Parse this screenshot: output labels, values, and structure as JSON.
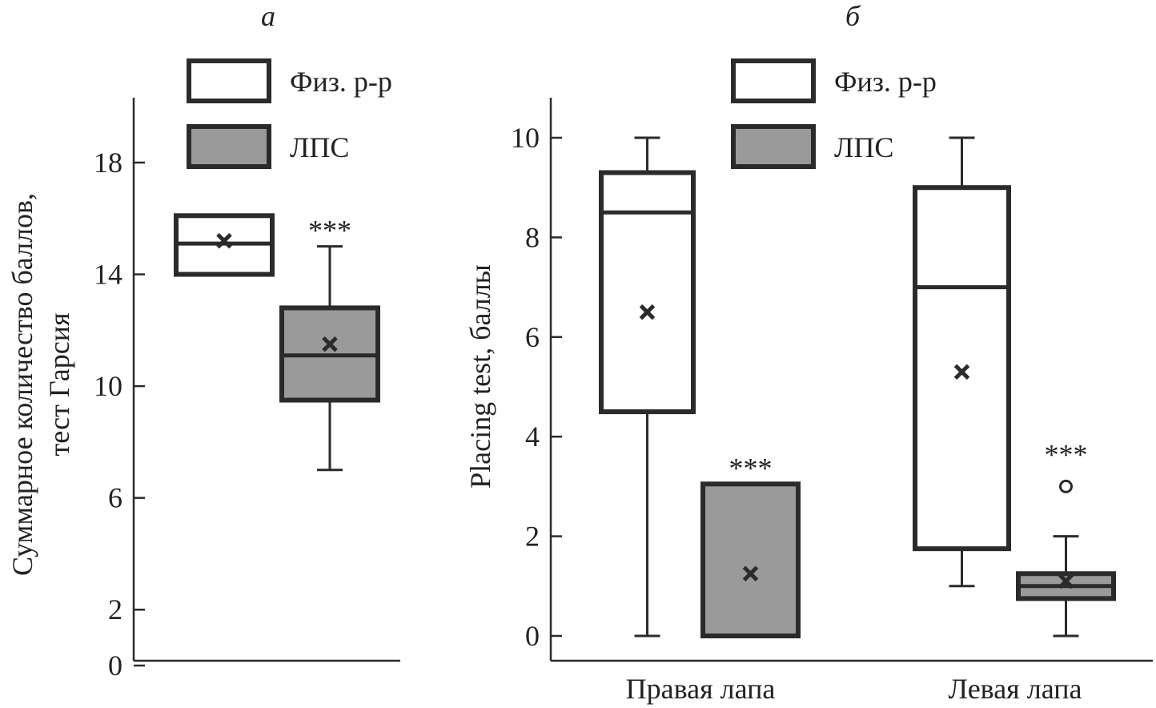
{
  "chart_data": [
    {
      "type": "box",
      "panel_label": "а",
      "ylabel": "Суммарное количество баллов, тест Гарсия",
      "ylabel_lines": [
        "Суммарное количество баллов,",
        "тест Гарсия"
      ],
      "yticks": [
        0,
        2,
        6,
        10,
        14,
        18
      ],
      "ylim": [
        0,
        20
      ],
      "legend": [
        {
          "name": "Физ. р-р",
          "color": "#ffffff"
        },
        {
          "name": "ЛПС",
          "color": "#9a9a9a"
        }
      ],
      "legend_placement": "top",
      "categories": [
        ""
      ],
      "series": [
        {
          "name": "Физ. р-р",
          "boxes": [
            {
              "whisker_low": 14.0,
              "q1": 14.0,
              "median": 15.1,
              "q3": 16.1,
              "whisker_high": 16.1,
              "mean": 15.2,
              "outliers": [],
              "annotation": ""
            }
          ]
        },
        {
          "name": "ЛПС",
          "boxes": [
            {
              "whisker_low": 7.0,
              "q1": 9.5,
              "median": 11.1,
              "q3": 12.8,
              "whisker_high": 15.0,
              "mean": 11.5,
              "outliers": [],
              "annotation": "***"
            }
          ]
        }
      ]
    },
    {
      "type": "box",
      "panel_label": "б",
      "ylabel": "Placing test, баллы",
      "yticks": [
        0,
        2,
        4,
        6,
        8,
        10
      ],
      "ylim": [
        0,
        10.5
      ],
      "legend": [
        {
          "name": "Физ. р-р",
          "color": "#ffffff"
        },
        {
          "name": "ЛПС",
          "color": "#9a9a9a"
        }
      ],
      "legend_placement": "top-left",
      "categories": [
        "Правая лапа",
        "Левая лапа"
      ],
      "series": [
        {
          "name": "Физ. р-р",
          "boxes": [
            {
              "whisker_low": 0,
              "q1": 4.5,
              "median": 8.5,
              "q3": 9.3,
              "whisker_high": 10,
              "mean": 6.5,
              "outliers": [],
              "annotation": ""
            },
            {
              "whisker_low": 1,
              "q1": 1.75,
              "median": 7.0,
              "q3": 9.0,
              "whisker_high": 10,
              "mean": 5.3,
              "outliers": [],
              "annotation": ""
            }
          ]
        },
        {
          "name": "ЛПС",
          "boxes": [
            {
              "whisker_low": 0,
              "q1": 0,
              "median": 0,
              "q3": 3.05,
              "whisker_high": 3.05,
              "mean": 1.25,
              "outliers": [],
              "annotation": "***"
            },
            {
              "whisker_low": 0,
              "q1": 0.75,
              "median": 1.0,
              "q3": 1.25,
              "whisker_high": 2,
              "mean": 1.1,
              "outliers": [
                3
              ],
              "annotation": "***"
            }
          ]
        }
      ]
    }
  ]
}
